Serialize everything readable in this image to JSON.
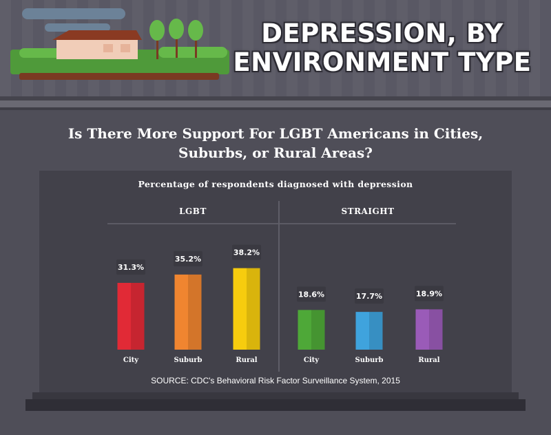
{
  "header": {
    "title_line1": "DEPRESSION, BY",
    "title_line2": "ENVIRONMENT TYPE"
  },
  "subtitle_line1": "Is There More Support For LGBT Americans in Cities,",
  "subtitle_line2": "Suburbs, or Rural Areas?",
  "source": "SOURCE: CDC's Behavioral Risk Factor Surveillance System, 2015",
  "colors": {
    "background": "#4f4e58",
    "panel": "#42414a",
    "label_bg": "#3a3941"
  },
  "chart_data": {
    "type": "bar",
    "title": "Percentage of respondents diagnosed with depression",
    "unit": "%",
    "groups": [
      {
        "name": "LGBT",
        "categories": [
          "City",
          "Suburb",
          "Rural"
        ],
        "values": [
          31.3,
          35.2,
          38.2
        ],
        "labels": [
          "31.3%",
          "35.2%",
          "38.2%"
        ],
        "colors": [
          "#e12a36",
          "#f08530",
          "#f7cc0e"
        ]
      },
      {
        "name": "STRAIGHT",
        "categories": [
          "City",
          "Suburb",
          "Rural"
        ],
        "values": [
          18.6,
          17.7,
          18.9
        ],
        "labels": [
          "18.6%",
          "17.7%",
          "18.9%"
        ],
        "colors": [
          "#4ea838",
          "#3fa3dd",
          "#9a5bb8"
        ]
      }
    ],
    "grid": false,
    "legend": "none"
  }
}
